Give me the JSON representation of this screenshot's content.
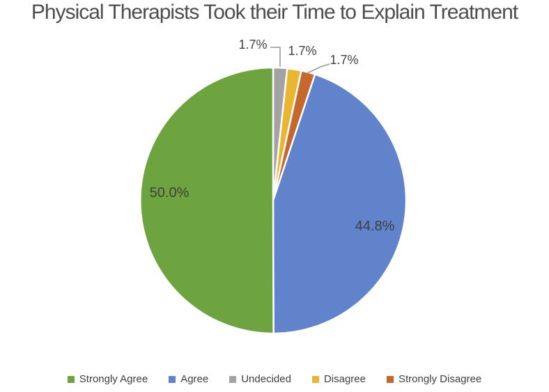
{
  "background": "#FFFFFF",
  "text_color": "#3F3F3F",
  "title_color": "#4D4D4D",
  "leader_line_color": "#A6A6A6",
  "chart_data": {
    "type": "pie",
    "title": "Physical Therapists Took their Time to Explain Treatment",
    "start_angle_deg": 0,
    "direction": "clockwise",
    "grid": false,
    "legend_position": "bottom",
    "slices": [
      {
        "label": "Undecided",
        "value": 1.7,
        "display": "1.7%",
        "color": "#A3A3A3",
        "label_placement": "outside"
      },
      {
        "label": "Disagree",
        "value": 1.7,
        "display": "1.7%",
        "color": "#E8B633",
        "label_placement": "outside"
      },
      {
        "label": "Strongly Disagree",
        "value": 1.7,
        "display": "1.7%",
        "color": "#C4682E",
        "label_placement": "outside"
      },
      {
        "label": "Agree",
        "value": 44.8,
        "display": "44.8%",
        "color": "#6083CC",
        "label_placement": "inside"
      },
      {
        "label": "Strongly Agree",
        "value": 50.0,
        "display": "50.0%",
        "color": "#6EA43F",
        "label_placement": "inside"
      }
    ],
    "legend": [
      {
        "label": "Strongly Agree",
        "color": "#6EA43F"
      },
      {
        "label": "Agree",
        "color": "#6083CC"
      },
      {
        "label": "Undecided",
        "color": "#A3A3A3"
      },
      {
        "label": "Disagree",
        "color": "#E8B633"
      },
      {
        "label": "Strongly Disagree",
        "color": "#C4682E"
      }
    ]
  }
}
